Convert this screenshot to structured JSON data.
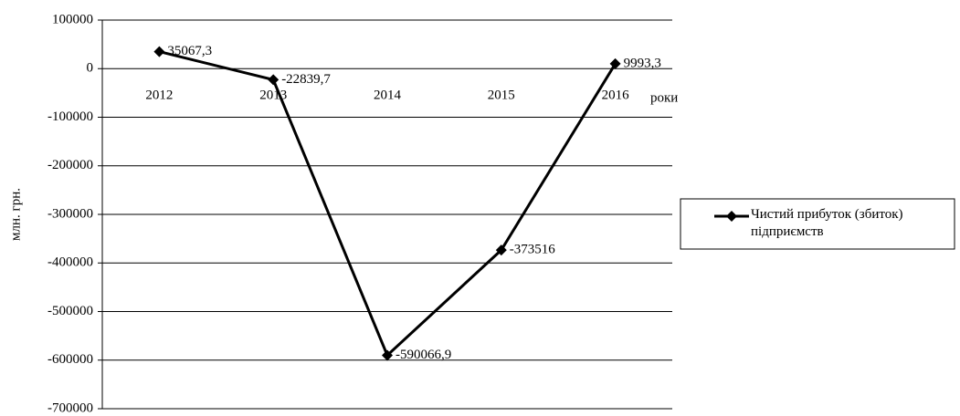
{
  "chart_data": {
    "type": "line",
    "categories": [
      "2012",
      "2013",
      "2014",
      "2015",
      "2016"
    ],
    "x_label": "роки",
    "y_label": "млн. грн.",
    "series": [
      {
        "name": "Чистий прибуток (збиток) підприємств",
        "color": "#000000",
        "marker": "diamond",
        "values": [
          35067.3,
          -22839.7,
          -590066.9,
          -373516,
          9993.3
        ],
        "value_labels": [
          "35067,3",
          "-22839,7",
          "-590066,9",
          "-373516",
          "9993,3"
        ]
      }
    ],
    "ylim": [
      -700000,
      100000
    ],
    "yticks": [
      100000,
      0,
      -100000,
      -200000,
      -300000,
      -400000,
      -500000,
      -600000,
      -700000
    ],
    "grid": true,
    "legend": "right"
  }
}
